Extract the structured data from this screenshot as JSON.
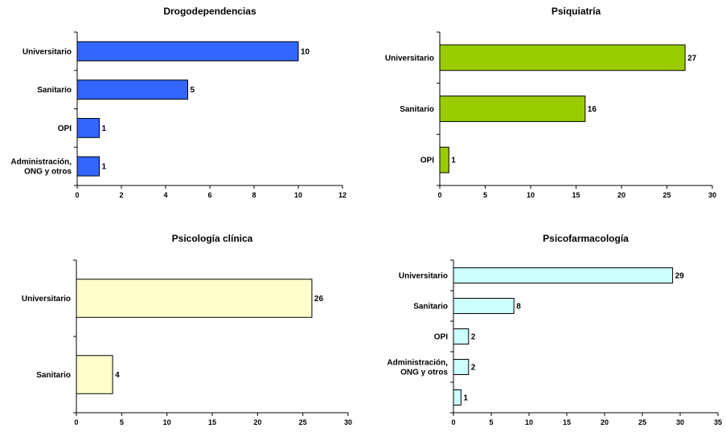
{
  "chart_data": [
    {
      "type": "bar",
      "orientation": "horizontal",
      "title": "Drogodependencias",
      "categories": [
        [
          "Universitario"
        ],
        [
          "Sanitario"
        ],
        [
          "OPI"
        ],
        [
          "Administración,",
          "ONG y otros"
        ]
      ],
      "values": [
        10,
        5,
        1,
        1
      ],
      "xlim": [
        0,
        12
      ],
      "xticks": [
        0,
        2,
        4,
        6,
        8,
        10,
        12
      ],
      "color": "#3366ff"
    },
    {
      "type": "bar",
      "orientation": "horizontal",
      "title": "Psiquiatría",
      "categories": [
        [
          "Universitario"
        ],
        [
          "Sanitario"
        ],
        [
          "OPI"
        ]
      ],
      "values": [
        27,
        16,
        1
      ],
      "xlim": [
        0,
        30
      ],
      "xticks": [
        0,
        5,
        10,
        15,
        20,
        25,
        30
      ],
      "color": "#99cc00"
    },
    {
      "type": "bar",
      "orientation": "horizontal",
      "title": "Psicología clínica",
      "categories": [
        [
          "Universitario"
        ],
        [
          "Sanitario"
        ]
      ],
      "values": [
        26,
        4
      ],
      "xlim": [
        0,
        30
      ],
      "xticks": [
        0,
        5,
        10,
        15,
        20,
        25,
        30
      ],
      "color": "#ffffcc"
    },
    {
      "type": "bar",
      "orientation": "horizontal",
      "title": "Psicofarmacología",
      "categories": [
        [
          "Universitario"
        ],
        [
          "Sanitario"
        ],
        [
          "OPI"
        ],
        [
          "Administración,",
          "ONG y otros"
        ],
        [
          ""
        ]
      ],
      "values": [
        29,
        8,
        2,
        2,
        1
      ],
      "xlim": [
        0,
        35
      ],
      "xticks": [
        0,
        5,
        10,
        15,
        20,
        25,
        30,
        35
      ],
      "color": "#ccffff"
    }
  ]
}
